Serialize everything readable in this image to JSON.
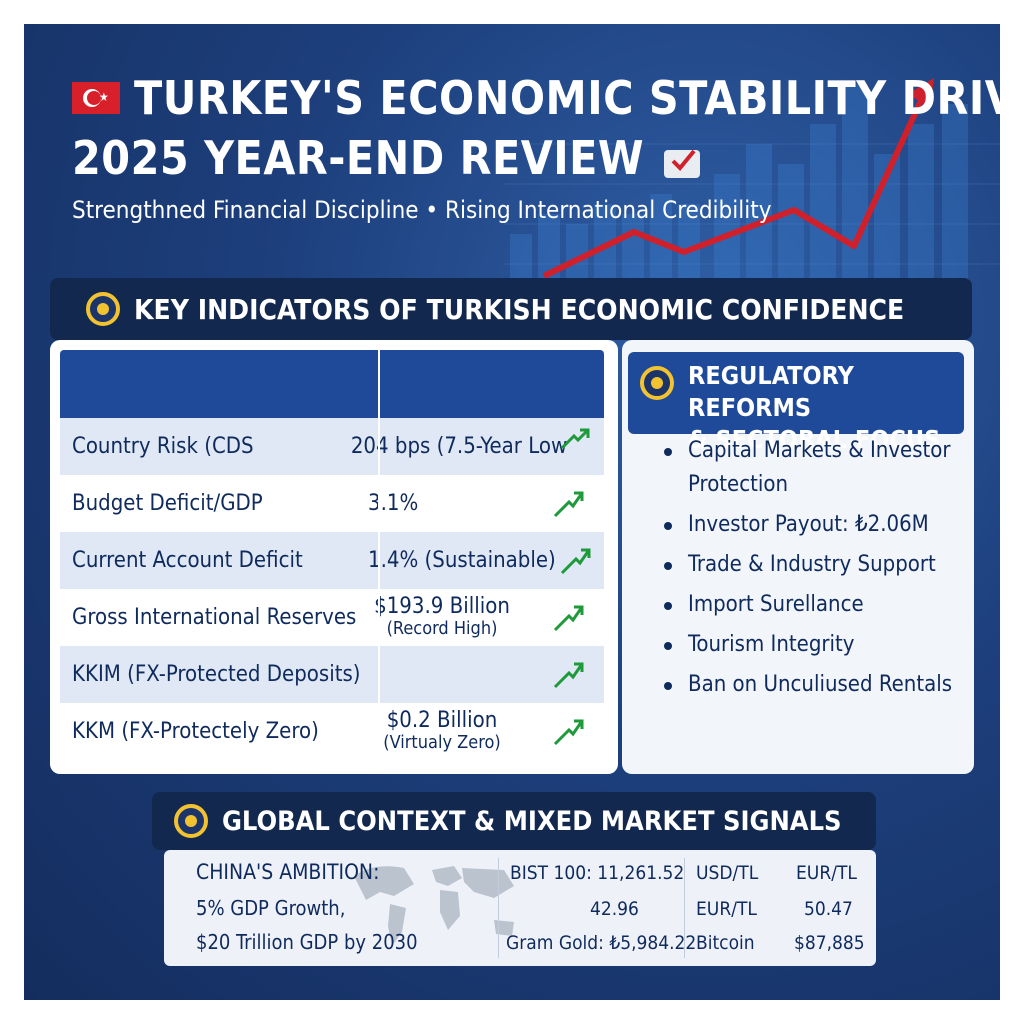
{
  "header": {
    "title_line1": "TURKEY'S ECONOMIC STABILITY DRIVE:",
    "title_line2": "2025 YEAR-END REVIEW",
    "subtitle": "Strengthned Financial Discipline • Rising International Credibility"
  },
  "key_indicators": {
    "heading": "KEY INDICATORS OF TURKISH ECONOMIC CONFIDENCE",
    "rows": [
      {
        "label": "Country Risk (CDS",
        "value": "204 bps (7.5-Year Low",
        "value_sub": ""
      },
      {
        "label": "Budget Deficit/GDP",
        "value": "3.1%",
        "value_sub": ""
      },
      {
        "label": "Current Account Deficit",
        "value": "1.4% (Sustainable)",
        "value_sub": ""
      },
      {
        "label": "Gross International Reserves",
        "value": "$193.9 Billion",
        "value_sub": "(Record High)"
      },
      {
        "label": "KKIM (FX-Protected Deposits)",
        "value": "",
        "value_sub": ""
      },
      {
        "label": "KKM (FX-Protectely Zero)",
        "value": "$0.2 Billion",
        "value_sub": "(Virtualy Zero)"
      }
    ]
  },
  "reforms": {
    "heading_line1": "REGULATORY REFORMS",
    "heading_line2": "& SECTORAL FOCUS",
    "items": [
      "Capital Markets & Investor Protection",
      "Investor Payout: ₺2.06M",
      "Trade & Industry Support",
      "Import Surellance",
      "Tourism Integrity",
      "Ban on Unculiused Rentals"
    ]
  },
  "global_context": {
    "heading": "GLOBAL CONTEXT & MIXED MARKET SIGNALS",
    "china_title": "CHINA'S AMBITION:",
    "china_line1": "5% GDP Growth,",
    "china_line2": "$20 Trillion GDP by 2030",
    "bist": "BIST 100: 11,261.52",
    "mid_value": "42.96",
    "gold": "Gram Gold: ₺5,984.22",
    "usd_tl_label": "USD/TL",
    "eur_tl_label_1": "EUR/TL",
    "eur_tl_label_2": "EUR/TL",
    "eur_tl_value": "50.47",
    "bitcoin_label": "Bitcoin",
    "bitcoin_value": "$87,885"
  },
  "colors": {
    "background": "#1d3f7c",
    "table_header": "#1f4a9a",
    "accent_red": "#d8202b",
    "shield_gold": "#f2c230",
    "check_green": "#1e9a3a"
  }
}
